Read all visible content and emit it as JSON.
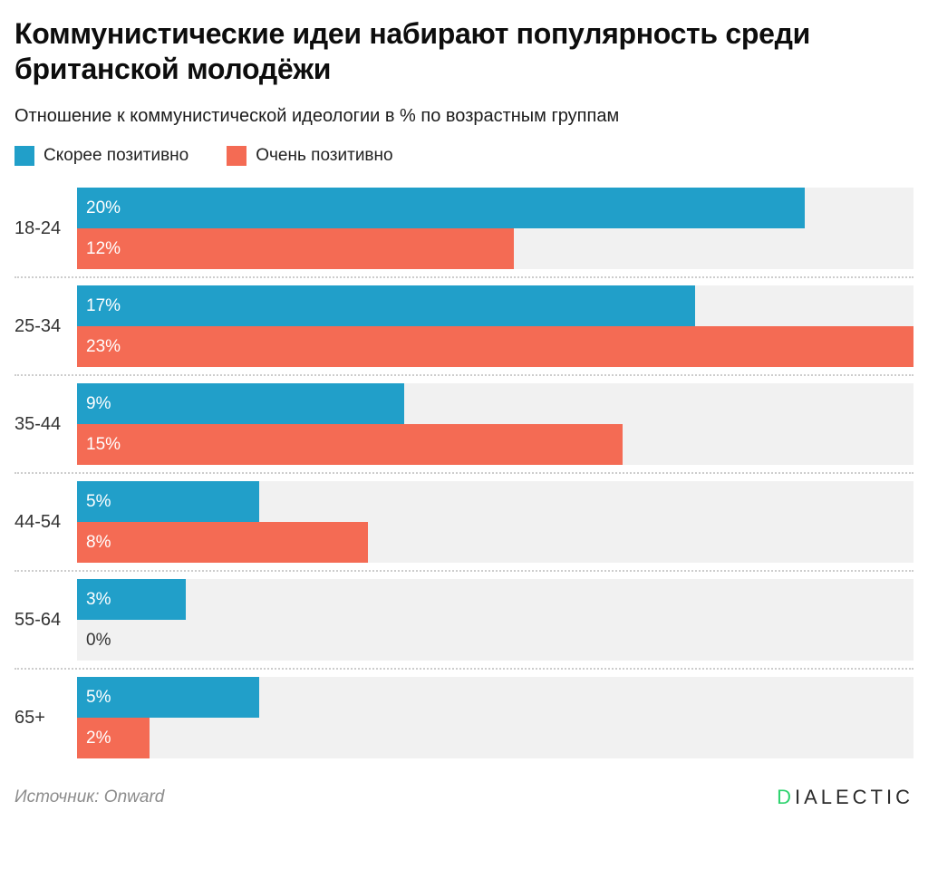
{
  "header": {
    "title_line1": "Коммунистические идеи набирают популярность среди",
    "title_line2": "британской молодёжи",
    "subtitle": "Отношение к коммунистической идеологии в % по возрастным группам"
  },
  "legend": [
    {
      "label": "Скорее позитивно",
      "color": "#219fc9"
    },
    {
      "label": "Очень позитивно",
      "color": "#f46b54"
    }
  ],
  "chart_data": {
    "type": "bar",
    "orientation": "horizontal",
    "title": "Коммунистические идеи набирают популярность среди британской молодёжи",
    "subtitle": "Отношение к коммунистической идеологии в % по возрастным группам",
    "categories": [
      "18-24",
      "25-34",
      "35-44",
      "44-54",
      "55-64",
      "65+"
    ],
    "series": [
      {
        "name": "Скорее позитивно",
        "color": "#219fc9",
        "values": [
          20,
          17,
          9,
          5,
          3,
          5
        ]
      },
      {
        "name": "Очень позитивно",
        "color": "#f46b54",
        "values": [
          12,
          23,
          15,
          8,
          0,
          2
        ]
      }
    ],
    "value_suffix": "%",
    "xlim": [
      0,
      23
    ],
    "grid": false,
    "legend_position": "top-left",
    "row_background": "#f1f1f1",
    "divider_style": "dotted"
  },
  "footer": {
    "source": "Источник: Onward",
    "logo_first_letter": "D",
    "logo_rest": "IALECTIC",
    "logo_first_letter_color": "#2fd36f"
  }
}
